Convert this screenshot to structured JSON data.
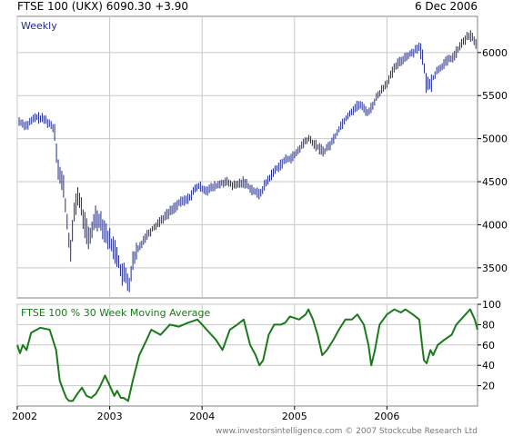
{
  "header": {
    "left": "FTSE 100 (UKX) 6090.30 +3.90",
    "right": "6 Dec 2006"
  },
  "footer": "www.investorsintelligence.com  © 2007 Stockcube Research Ltd",
  "colors": {
    "price_bar": "#1f2a8c",
    "ma_line": "#1a7a1a",
    "grid": "#c8c8c8",
    "frame": "#808080"
  },
  "chart_data": [
    {
      "type": "ohlc",
      "label": "Weekly",
      "ylim": [
        3150,
        6420
      ],
      "xlim": [
        2002.0,
        2006.98
      ],
      "yticks": [
        3500,
        4000,
        4500,
        5000,
        5500,
        6000
      ],
      "xticks": [
        "2002",
        "2003",
        "2004",
        "2005",
        "2006"
      ],
      "series": [
        {
          "points": [
            [
              2002.02,
              5200
            ],
            [
              2002.1,
              5150
            ],
            [
              2002.2,
              5250
            ],
            [
              2002.3,
              5220
            ],
            [
              2002.4,
              5120
            ],
            [
              2002.45,
              4600
            ],
            [
              2002.5,
              4450
            ],
            [
              2002.55,
              3900
            ],
            [
              2002.58,
              3680
            ],
            [
              2002.62,
              4200
            ],
            [
              2002.66,
              4350
            ],
            [
              2002.72,
              4050
            ],
            [
              2002.78,
              3800
            ],
            [
              2002.84,
              4100
            ],
            [
              2002.9,
              4050
            ],
            [
              2002.96,
              3900
            ],
            [
              2003.03,
              3750
            ],
            [
              2003.08,
              3650
            ],
            [
              2003.12,
              3450
            ],
            [
              2003.17,
              3400
            ],
            [
              2003.21,
              3300
            ],
            [
              2003.25,
              3550
            ],
            [
              2003.3,
              3700
            ],
            [
              2003.38,
              3850
            ],
            [
              2003.46,
              3950
            ],
            [
              2003.55,
              4050
            ],
            [
              2003.65,
              4150
            ],
            [
              2003.75,
              4250
            ],
            [
              2003.85,
              4300
            ],
            [
              2003.95,
              4450
            ],
            [
              2004.05,
              4400
            ],
            [
              2004.15,
              4450
            ],
            [
              2004.25,
              4500
            ],
            [
              2004.35,
              4450
            ],
            [
              2004.45,
              4500
            ],
            [
              2004.55,
              4400
            ],
            [
              2004.62,
              4350
            ],
            [
              2004.7,
              4500
            ],
            [
              2004.8,
              4650
            ],
            [
              2004.9,
              4750
            ],
            [
              2005.0,
              4800
            ],
            [
              2005.1,
              4950
            ],
            [
              2005.15,
              5000
            ],
            [
              2005.25,
              4900
            ],
            [
              2005.32,
              4850
            ],
            [
              2005.4,
              4950
            ],
            [
              2005.5,
              5150
            ],
            [
              2005.6,
              5300
            ],
            [
              2005.7,
              5400
            ],
            [
              2005.8,
              5300
            ],
            [
              2005.9,
              5500
            ],
            [
              2006.0,
              5650
            ],
            [
              2006.1,
              5850
            ],
            [
              2006.2,
              5950
            ],
            [
              2006.28,
              6000
            ],
            [
              2006.35,
              6080
            ],
            [
              2006.4,
              5850
            ],
            [
              2006.43,
              5600
            ],
            [
              2006.47,
              5650
            ],
            [
              2006.55,
              5800
            ],
            [
              2006.65,
              5900
            ],
            [
              2006.72,
              5950
            ],
            [
              2006.78,
              6050
            ],
            [
              2006.84,
              6150
            ],
            [
              2006.9,
              6200
            ],
            [
              2006.94,
              6150
            ],
            [
              2006.97,
              6090
            ]
          ]
        }
      ]
    },
    {
      "type": "line",
      "label": "FTSE 100 % 30 Week Moving Average",
      "ylim": [
        0,
        100
      ],
      "yticks": [
        20,
        40,
        60,
        80,
        100
      ],
      "series": [
        {
          "points": [
            [
              2002.0,
              60
            ],
            [
              2002.03,
              52
            ],
            [
              2002.06,
              60
            ],
            [
              2002.1,
              55
            ],
            [
              2002.15,
              72
            ],
            [
              2002.25,
              77
            ],
            [
              2002.35,
              75
            ],
            [
              2002.42,
              55
            ],
            [
              2002.46,
              25
            ],
            [
              2002.5,
              15
            ],
            [
              2002.53,
              8
            ],
            [
              2002.56,
              5
            ],
            [
              2002.6,
              5
            ],
            [
              2002.65,
              12
            ],
            [
              2002.7,
              18
            ],
            [
              2002.75,
              10
            ],
            [
              2002.8,
              8
            ],
            [
              2002.85,
              12
            ],
            [
              2002.9,
              20
            ],
            [
              2002.95,
              30
            ],
            [
              2003.0,
              20
            ],
            [
              2003.05,
              10
            ],
            [
              2003.08,
              15
            ],
            [
              2003.12,
              8
            ],
            [
              2003.15,
              8
            ],
            [
              2003.2,
              5
            ],
            [
              2003.25,
              25
            ],
            [
              2003.32,
              50
            ],
            [
              2003.4,
              65
            ],
            [
              2003.45,
              75
            ],
            [
              2003.55,
              70
            ],
            [
              2003.65,
              80
            ],
            [
              2003.75,
              78
            ],
            [
              2003.85,
              82
            ],
            [
              2003.95,
              85
            ],
            [
              2004.05,
              75
            ],
            [
              2004.15,
              65
            ],
            [
              2004.22,
              55
            ],
            [
              2004.3,
              75
            ],
            [
              2004.38,
              80
            ],
            [
              2004.45,
              85
            ],
            [
              2004.52,
              60
            ],
            [
              2004.58,
              50
            ],
            [
              2004.62,
              40
            ],
            [
              2004.66,
              45
            ],
            [
              2004.72,
              70
            ],
            [
              2004.78,
              80
            ],
            [
              2004.85,
              80
            ],
            [
              2004.9,
              82
            ],
            [
              2004.95,
              88
            ],
            [
              2005.05,
              85
            ],
            [
              2005.12,
              90
            ],
            [
              2005.15,
              95
            ],
            [
              2005.2,
              85
            ],
            [
              2005.25,
              70
            ],
            [
              2005.3,
              50
            ],
            [
              2005.35,
              55
            ],
            [
              2005.42,
              65
            ],
            [
              2005.48,
              75
            ],
            [
              2005.55,
              85
            ],
            [
              2005.62,
              85
            ],
            [
              2005.68,
              90
            ],
            [
              2005.75,
              80
            ],
            [
              2005.8,
              60
            ],
            [
              2005.83,
              40
            ],
            [
              2005.87,
              55
            ],
            [
              2005.92,
              80
            ],
            [
              2006.0,
              90
            ],
            [
              2006.08,
              95
            ],
            [
              2006.15,
              92
            ],
            [
              2006.2,
              95
            ],
            [
              2006.28,
              90
            ],
            [
              2006.35,
              85
            ],
            [
              2006.38,
              60
            ],
            [
              2006.4,
              45
            ],
            [
              2006.43,
              42
            ],
            [
              2006.47,
              55
            ],
            [
              2006.5,
              50
            ],
            [
              2006.55,
              60
            ],
            [
              2006.62,
              65
            ],
            [
              2006.7,
              70
            ],
            [
              2006.75,
              80
            ],
            [
              2006.8,
              85
            ],
            [
              2006.85,
              90
            ],
            [
              2006.9,
              95
            ],
            [
              2006.95,
              85
            ],
            [
              2006.98,
              75
            ]
          ]
        }
      ]
    }
  ]
}
